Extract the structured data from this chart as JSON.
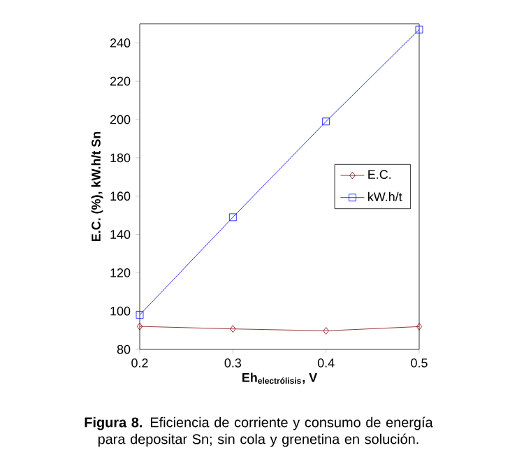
{
  "chart_data": {
    "type": "line",
    "x": [
      0.2,
      0.3,
      0.4,
      0.5
    ],
    "series": [
      {
        "name": "E.C.",
        "color": "#800000",
        "marker": "diamond",
        "values": [
          92,
          90.7,
          89.7,
          91.9
        ]
      },
      {
        "name": "kW.h/t",
        "color": "#0000ff",
        "marker": "square",
        "values": [
          98,
          149,
          199,
          247
        ]
      }
    ],
    "xlabel": "\\textbf{Eh}_{\\textbf{electrólisis}}\\textbf{, V}",
    "ylabel": "E.C. (%), kW.h/t Sn",
    "xlim": [
      0.2,
      0.5
    ],
    "xticks": [
      0.2,
      0.3,
      0.4,
      0.5
    ],
    "ylim": [
      80,
      250
    ],
    "yticks": [
      80,
      100,
      120,
      140,
      160,
      180,
      200,
      220,
      240
    ],
    "legend": "right",
    "grid": false,
    "annotations": [
      "**Figura 8.** Eficiencia de corriente y consumo de energía para depositar Sn; sin cola y grenetina en solución."
    ]
  }
}
